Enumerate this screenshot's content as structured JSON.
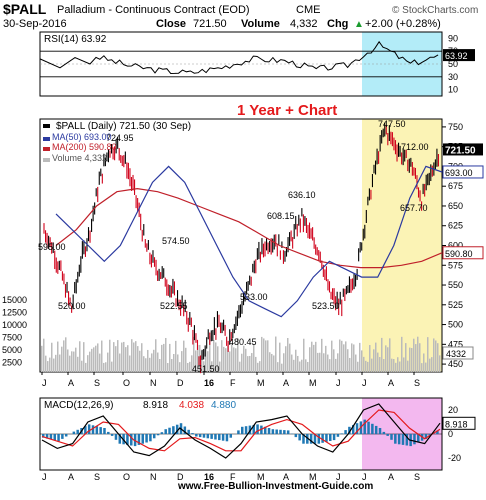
{
  "header": {
    "symbol": "$PALL",
    "name": "Palladium - Continuous Contract (EOD)",
    "exchange": "CME",
    "watermark": "© StockCharts.com",
    "date": "30-Sep-2016",
    "close_label": "Close",
    "close_value": "721.50",
    "volume_label": "Volume",
    "volume_value": "4,332",
    "chg_label": "Chg",
    "chg_value": "+2.00 (+0.28%)",
    "chg_arrow": "▲"
  },
  "colors": {
    "price": "#000000",
    "up_bar": "#000000",
    "down_bar": "#d0021b",
    "ma50": "#2b3aa0",
    "ma200": "#c0202a",
    "volume": "#bbbbbb",
    "rsi_highlight": "#b3ecf8",
    "price_highlight": "#fbf3b5",
    "macd_highlight": "#f3b8ef",
    "macd_line": "#000000",
    "signal_line": "#e41a1c",
    "histogram": "#1f78b4",
    "annotation": "#e41a1c"
  },
  "annotation": "1 Year + Chart",
  "footer": "www.Free-Bullion-Investment-Guide.com",
  "chart_data": [
    {
      "type": "line",
      "panel": "rsi",
      "title": "RSI(14) 63.92",
      "y_ticks": [
        "90",
        "70",
        "50",
        "30",
        "10"
      ],
      "ylim": [
        0,
        100
      ],
      "reference_lines": [
        70,
        30
      ],
      "current_label": "63.92",
      "x": [
        "Oct",
        "Nov",
        "Dec",
        "Jan",
        "Feb",
        "Mar",
        "Apr",
        "May",
        "Jun",
        "Jul",
        "Aug",
        "Sep"
      ],
      "values": [
        62,
        48,
        40,
        36,
        45,
        58,
        55,
        42,
        48,
        80,
        50,
        64
      ]
    },
    {
      "type": "line",
      "panel": "price",
      "legend": [
        {
          "label": "$PALL (Daily) 721.50 (30 Sep)",
          "color": "#000000"
        },
        {
          "label": "MA(50) 693.00",
          "color": "#2b3aa0"
        },
        {
          "label": "MA(200) 590.80",
          "color": "#c0202a"
        },
        {
          "label": "Volume 4,332",
          "color": "#bbbbbb"
        }
      ],
      "y_ticks": [
        "750",
        "725",
        "700",
        "675",
        "650",
        "625",
        "600",
        "575",
        "550",
        "525",
        "500",
        "475",
        "450"
      ],
      "ylim": [
        440,
        760
      ],
      "volume_ticks": [
        "15000",
        "12500",
        "10000",
        "7500",
        "5000",
        "2500"
      ],
      "x_ticks": [
        "J",
        "A",
        "S",
        "O",
        "N",
        "D",
        "16",
        "F",
        "M",
        "A",
        "M",
        "J",
        "J",
        "A",
        "S"
      ],
      "right_labels": {
        "price": "721.50",
        "ma50": "693.00",
        "ma200": "590.80",
        "volume": "4332"
      },
      "annotations": [
        {
          "label": "595.00",
          "value": 595.0
        },
        {
          "label": "520.00",
          "value": 520.0
        },
        {
          "label": "724.95",
          "value": 724.95
        },
        {
          "label": "574.50",
          "value": 574.5
        },
        {
          "label": "522.55",
          "value": 522.55
        },
        {
          "label": "451.50",
          "value": 451.5
        },
        {
          "label": "480.45",
          "value": 480.45
        },
        {
          "label": "533.00",
          "value": 533.0
        },
        {
          "label": "608.15",
          "value": 608.15
        },
        {
          "label": "636.10",
          "value": 636.1
        },
        {
          "label": "523.50",
          "value": 523.5
        },
        {
          "label": "747.50",
          "value": 747.5
        },
        {
          "label": "712.00",
          "value": 712.0
        },
        {
          "label": "657.70",
          "value": 657.7
        }
      ],
      "price_series": [
        [
          "Jul",
          620
        ],
        [
          "Jul",
          595
        ],
        [
          "Aug",
          560
        ],
        [
          "Aug",
          520
        ],
        [
          "Sep",
          580
        ],
        [
          "Sep",
          620
        ],
        [
          "Sep",
          680
        ],
        [
          "Oct",
          720
        ],
        [
          "Oct",
          724.95
        ],
        [
          "Oct",
          700
        ],
        [
          "Nov",
          660
        ],
        [
          "Nov",
          600
        ],
        [
          "Nov",
          574.5
        ],
        [
          "Dec",
          560
        ],
        [
          "Dec",
          540
        ],
        [
          "Dec",
          522.55
        ],
        [
          "Jan",
          500
        ],
        [
          "Jan",
          451.5
        ],
        [
          "Jan",
          490
        ],
        [
          "Feb",
          500
        ],
        [
          "Feb",
          480.45
        ],
        [
          "Feb",
          510
        ],
        [
          "Mar",
          540
        ],
        [
          "Mar",
          580
        ],
        [
          "Mar",
          600
        ],
        [
          "Apr",
          608.15
        ],
        [
          "Apr",
          590
        ],
        [
          "Apr",
          610
        ],
        [
          "Apr",
          636.1
        ],
        [
          "May",
          610
        ],
        [
          "May",
          590
        ],
        [
          "May",
          540
        ],
        [
          "Jun",
          523.5
        ],
        [
          "Jun",
          540
        ],
        [
          "Jun",
          570
        ],
        [
          "Jul",
          640
        ],
        [
          "Jul",
          700
        ],
        [
          "Jul",
          747.5
        ],
        [
          "Aug",
          730
        ],
        [
          "Aug",
          712
        ],
        [
          "Aug",
          700
        ],
        [
          "Sep",
          657.7
        ],
        [
          "Sep",
          690
        ],
        [
          "Sep",
          721.5
        ]
      ],
      "ma50_series": [
        640,
        620,
        600,
        580,
        600,
        640,
        680,
        700,
        680,
        640,
        600,
        560,
        530,
        520,
        510,
        530,
        560,
        580,
        570,
        560,
        560,
        600,
        660,
        700,
        693
      ],
      "ma200_series": [
        600,
        620,
        650,
        668,
        672,
        668,
        660,
        650,
        640,
        630,
        615,
        600,
        590,
        580,
        575,
        572,
        572,
        575,
        580,
        590.8
      ]
    },
    {
      "type": "line",
      "panel": "macd",
      "title": "MACD(12,26,9)",
      "series": [
        {
          "name": "MACD",
          "value": "8.918",
          "color": "#000000"
        },
        {
          "name": "Signal",
          "value": "4.038",
          "color": "#e41a1c"
        },
        {
          "name": "Histogram",
          "value": "4.880",
          "color": "#1f78b4"
        }
      ],
      "y_ticks": [
        "20",
        "0",
        "-20"
      ],
      "ylim": [
        -30,
        30
      ],
      "current_label": "8.918",
      "x_ticks": [
        "J",
        "A",
        "S",
        "O",
        "N",
        "D",
        "16",
        "F",
        "M",
        "A",
        "M",
        "J",
        "J",
        "A",
        "S"
      ],
      "macd_values": [
        -5,
        -12,
        -8,
        10,
        15,
        0,
        -15,
        -18,
        -10,
        5,
        -5,
        -12,
        -20,
        -8,
        10,
        12,
        15,
        0,
        -10,
        -15,
        0,
        20,
        25,
        10,
        -5,
        -8,
        9
      ],
      "signal_values": [
        -2,
        -6,
        -10,
        2,
        10,
        8,
        -5,
        -12,
        -14,
        -4,
        -3,
        -8,
        -14,
        -14,
        2,
        8,
        12,
        8,
        -2,
        -10,
        -6,
        8,
        20,
        18,
        5,
        -4,
        4
      ]
    }
  ]
}
